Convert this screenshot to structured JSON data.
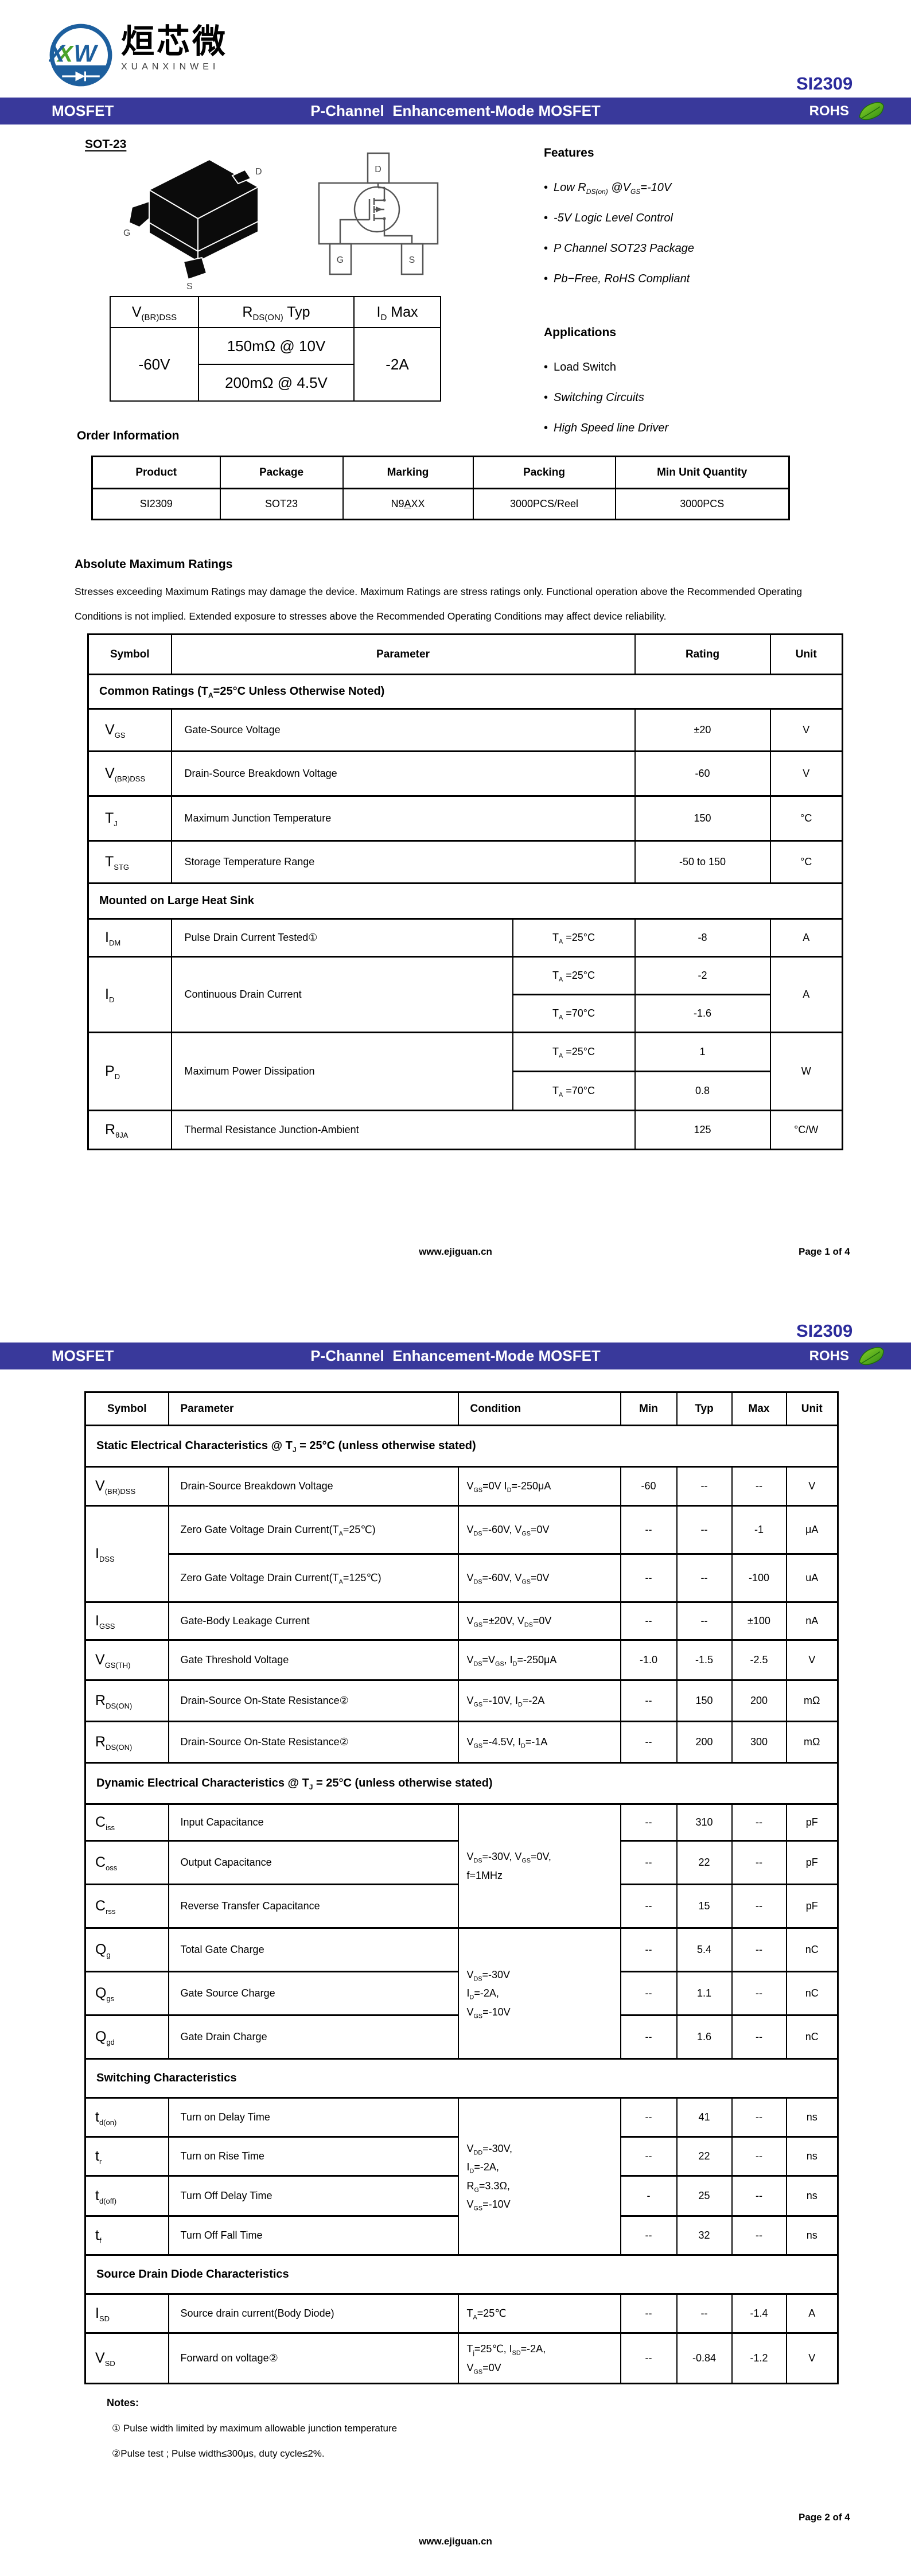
{
  "colors": {
    "bar": "#39399b",
    "product": "#2b2b9b",
    "logo-blue": "#1d5f9e",
    "logo-green": "#4aa32a"
  },
  "product": "SI2309",
  "header": {
    "logo_cn": "烜芯微",
    "logo_en": "XUANXINWEI",
    "monogram": [
      "X",
      "X",
      "W"
    ],
    "bar_left": "MOSFET",
    "bar_center": "P-Channel  Enhancement-Mode MOSFET",
    "rohs": "ROHS"
  },
  "p1": {
    "pkg_title": "SOT-23",
    "pins": {
      "d": "D",
      "g": "G",
      "s": "S"
    },
    "spec": {
      "h": [
        "V<sub>(BR)DSS</sub>",
        "R<sub>DS(ON)</sub> Typ",
        "I<sub>D</sub> Max"
      ],
      "vbr": "-60V",
      "rds10": "150mΩ @ 10V",
      "rds45": "200mΩ @ 4.5V",
      "idmax": "-2A"
    },
    "features": {
      "title": "Features",
      "items": [
        "Low R<sub>DS(on)</sub> @V<sub>GS</sub>=-10V",
        "-5V Logic Level Control",
        "P Channel SOT23 Package",
        "Pb−Free, RoHS Compliant"
      ]
    },
    "applications": {
      "title": "Applications",
      "items": [
        "Load Switch",
        "Switching Circuits",
        "High Speed line Driver"
      ]
    },
    "order": {
      "title": "Order Information",
      "h": [
        "Product",
        "Package",
        "Marking",
        "Packing",
        "Min Unit Quantity"
      ],
      "row": [
        "SI2309",
        "SOT23",
        "N9<u>A</u>XX",
        "3000PCS/Reel",
        "3000PCS"
      ]
    },
    "amr": {
      "title": "Absolute Maximum Ratings",
      "desc": "Stresses exceeding Maximum Ratings may damage the device. Maximum Ratings are stress ratings only. Functional operation above the Recommended Operating Conditions is not implied. Extended exposure to stresses above the Recommended Operating Conditions may affect device reliability.",
      "h": [
        "Symbol",
        "Parameter",
        "Rating",
        "Unit"
      ],
      "sec1": "Common Ratings (T<sub>A</sub>=25°C Unless Otherwise Noted)",
      "vgs": {
        "s": "V<sub>GS</sub>",
        "p": "Gate-Source Voltage",
        "r": "±20",
        "u": "V"
      },
      "vbr": {
        "s": "V<sub>(BR)DSS</sub>",
        "p": "Drain-Source Breakdown Voltage",
        "r": "-60",
        "u": "V"
      },
      "tj": {
        "s": "T<sub>J</sub>",
        "p": "Maximum Junction Temperature",
        "r": "150",
        "u": "°C"
      },
      "tstg": {
        "s": "T<sub>STG</sub>",
        "p": "Storage Temperature Range",
        "r": "-50 to 150",
        "u": "°C"
      },
      "sec2": "Mounted on Large Heat Sink",
      "idm": {
        "s": "I<sub>DM</sub>",
        "p": "Pulse Drain Current Tested①",
        "c": "T<sub>A</sub> =25°C",
        "r": "-8",
        "u": "A"
      },
      "id": {
        "s": "I<sub>D</sub>",
        "p": "Continuous Drain Current",
        "c1": "T<sub>A</sub> =25°C",
        "r1": "-2",
        "c2": "T<sub>A</sub> =70°C",
        "r2": "-1.6",
        "u": "A"
      },
      "pd": {
        "s": "P<sub>D</sub>",
        "p": "Maximum Power Dissipation",
        "c1": "T<sub>A</sub> =25°C",
        "r1": "1",
        "c2": "T<sub>A</sub> =70°C",
        "r2": "0.8",
        "u": "W"
      },
      "rja": {
        "s": "R<sub>θJA</sub>",
        "p": "Thermal Resistance Junction-Ambient",
        "r": "125",
        "u": "°C/W"
      }
    },
    "footer": {
      "url": "www.ejiguan.cn",
      "page": "Page 1 of 4"
    }
  },
  "p2": {
    "h": [
      "Symbol",
      "Parameter",
      "Condition",
      "Min",
      "Typ",
      "Max",
      "Unit"
    ],
    "sec1": "Static Electrical Characteristics @ T<sub>J</sub> = 25°C (unless otherwise stated)",
    "vbr": {
      "s": "V<sub>(BR)DSS</sub>",
      "p": "Drain-Source Breakdown Voltage",
      "c": "V<sub>GS</sub>=0V I<sub>D</sub>=-250μA",
      "mn": "-60",
      "ty": "--",
      "mx": "--",
      "u": "V"
    },
    "idss1": {
      "s": "I<sub>DSS</sub>",
      "p": "Zero Gate Voltage Drain Current(T<sub>A</sub>=25℃)",
      "c": "V<sub>DS</sub>=-60V, V<sub>GS</sub>=0V",
      "mn": "--",
      "ty": "--",
      "mx": "-1",
      "u": "μA"
    },
    "idss2": {
      "p": "Zero Gate Voltage Drain Current(T<sub>A</sub>=125℃)",
      "c": "V<sub>DS</sub>=-60V, V<sub>GS</sub>=0V",
      "mn": "--",
      "ty": "--",
      "mx": "-100",
      "u": "uA"
    },
    "igss": {
      "s": "I<sub>GSS</sub>",
      "p": "Gate-Body Leakage Current",
      "c": "V<sub>GS</sub>=±20V, V<sub>DS</sub>=0V",
      "mn": "--",
      "ty": "--",
      "mx": "±100",
      "u": "nA"
    },
    "vgsth": {
      "s": "V<sub>GS(TH)</sub>",
      "p": "Gate Threshold Voltage",
      "c": "V<sub>DS</sub>=V<sub>GS</sub>, I<sub>D</sub>=-250μA",
      "mn": "-1.0",
      "ty": "-1.5",
      "mx": "-2.5",
      "u": "V"
    },
    "rds1": {
      "s": "R<sub>DS(ON)</sub>",
      "p": "Drain-Source On-State Resistance②",
      "c": "V<sub>GS</sub>=-10V, I<sub>D</sub>=-2A",
      "mn": "--",
      "ty": "150",
      "mx": "200",
      "u": "mΩ"
    },
    "rds2": {
      "s": "R<sub>DS(ON)</sub>",
      "p": "Drain-Source On-State Resistance②",
      "c": "V<sub>GS</sub>=-4.5V, I<sub>D</sub>=-1A",
      "mn": "--",
      "ty": "200",
      "mx": "300",
      "u": "mΩ"
    },
    "sec2": "Dynamic Electrical Characteristics @ T<sub>J</sub> = 25°C (unless otherwise stated)",
    "cap_c": "V<sub>DS</sub>=-30V, V<sub>GS</sub>=0V,<br>f=1MHz",
    "ciss": {
      "s": "C<sub>iss</sub>",
      "p": "Input Capacitance",
      "mn": "--",
      "ty": "310",
      "mx": "--",
      "u": "pF"
    },
    "coss": {
      "s": "C<sub>oss</sub>",
      "p": "Output Capacitance",
      "mn": "--",
      "ty": "22",
      "mx": "--",
      "u": "pF"
    },
    "crss": {
      "s": "C<sub>rss</sub>",
      "p": "Reverse Transfer Capacitance",
      "mn": "--",
      "ty": "15",
      "mx": "--",
      "u": "pF"
    },
    "chg_c": "V<sub>DS</sub>=-30V<br>I<sub>D</sub>=-2A,<br>V<sub>GS</sub>=-10V",
    "qg": {
      "s": "Q<sub>g</sub>",
      "p": "Total Gate Charge",
      "mn": "--",
      "ty": "5.4",
      "mx": "--",
      "u": "nC"
    },
    "qgs": {
      "s": "Q<sub>gs</sub>",
      "p": "Gate Source Charge",
      "mn": "--",
      "ty": "1.1",
      "mx": "--",
      "u": "nC"
    },
    "qgd": {
      "s": "Q<sub>gd</sub>",
      "p": "Gate Drain Charge",
      "mn": "--",
      "ty": "1.6",
      "mx": "--",
      "u": "nC"
    },
    "sec3": "Switching Characteristics",
    "sw_c": "V<sub>DD</sub>=-30V,<br>I<sub>D</sub>=-2A,<br>R<sub>G</sub>=3.3Ω,<br>V<sub>GS</sub>=-10V",
    "tdon": {
      "s": "t<sub>d(on)</sub>",
      "p": "Turn on Delay Time",
      "mn": "--",
      "ty": "41",
      "mx": "--",
      "u": "ns"
    },
    "tr": {
      "s": "t<sub>r</sub>",
      "p": "Turn on Rise Time",
      "mn": "--",
      "ty": "22",
      "mx": "--",
      "u": "ns"
    },
    "tdoff": {
      "s": "t<sub>d(off)</sub>",
      "p": "Turn Off Delay Time",
      "mn": "-",
      "ty": "25",
      "mx": "--",
      "u": "ns"
    },
    "tf": {
      "s": "t<sub>f</sub>",
      "p": "Turn Off Fall Time",
      "mn": "--",
      "ty": "32",
      "mx": "--",
      "u": "ns"
    },
    "sec4": "Source Drain Diode Characteristics",
    "isd": {
      "s": "I<sub>SD</sub>",
      "p": "Source drain current(Body Diode)",
      "c": "T<sub>A</sub>=25℃",
      "mn": "--",
      "ty": "--",
      "mx": "-1.4",
      "u": "A"
    },
    "vsd": {
      "s": "V<sub>SD</sub>",
      "p": "Forward on voltage②",
      "c": "T<sub>j</sub>=25℃, I<sub>SD</sub>=-2A,<br>V<sub>GS</sub>=0V",
      "mn": "--",
      "ty": "-0.84",
      "mx": "-1.2",
      "u": "V"
    },
    "notes": {
      "title": "Notes:",
      "n1": "① Pulse width limited by maximum allowable junction temperature",
      "n2": "②Pulse test ; Pulse width≤300μs, duty cycle≤2%."
    },
    "footer": {
      "url": "www.ejiguan.cn",
      "page": "Page 2 of 4"
    }
  }
}
